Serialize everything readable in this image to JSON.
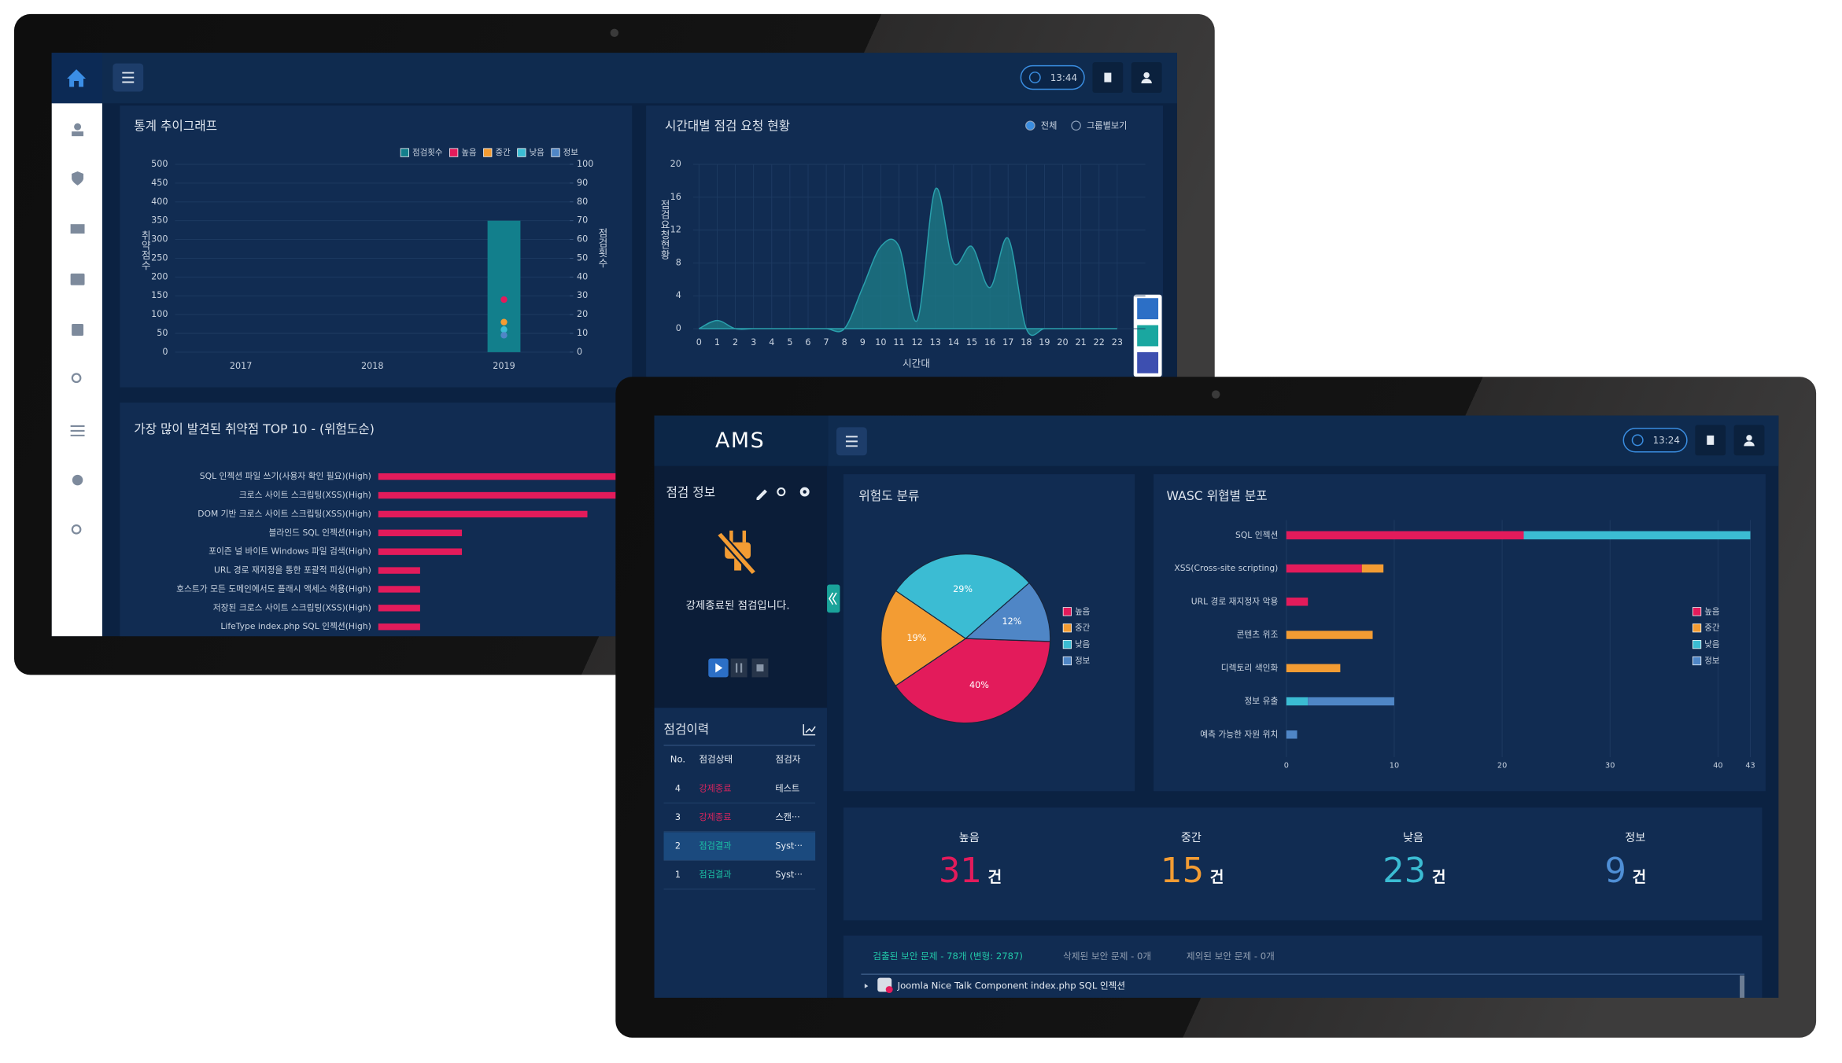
{
  "back_screen": {
    "time": "13:44"
  },
  "front_screen": {
    "logo": "AMS",
    "time": "13:24",
    "scan_info": {
      "title": "점검 정보",
      "message": "강제종료된 점검입니다."
    },
    "history": {
      "title": "점검이력",
      "columns": [
        "No.",
        "점검상태",
        "점검자"
      ],
      "rows": [
        [
          4,
          "강제종료",
          "테스트"
        ],
        [
          3,
          "강제종료",
          "스캔···"
        ],
        [
          2,
          "점검결과",
          "Syst···"
        ],
        [
          1,
          "점검결과",
          "Syst···"
        ]
      ]
    },
    "stats": [
      {
        "label": "높음",
        "value": 31,
        "unit": "건",
        "color": "#e31b5b"
      },
      {
        "label": "중간",
        "value": 15,
        "unit": "건",
        "color": "#f39c33"
      },
      {
        "label": "낮음",
        "value": 23,
        "unit": "건",
        "color": "#3bbcd3"
      },
      {
        "label": "정보",
        "value": 9,
        "unit": "건",
        "color": "#4f8fd6"
      }
    ],
    "issues": {
      "tabs": [
        "검출된 보안 문제 - 78개 (변형: 2787)",
        "삭제된 보안 문제 - 0개",
        "제외된 보안 문제 - 0개"
      ],
      "items": [
        "Joomla Nice Talk Component index.php SQL 인젝션"
      ]
    }
  },
  "chart_data": [
    {
      "type": "bar_line",
      "title": "통계 추이그래프",
      "categories": [
        "2017",
        "2018",
        "2019"
      ],
      "ylabel": "취약점수",
      "y2label": "점검횟수",
      "ylim": [
        0,
        500
      ],
      "yticks": [
        0,
        50,
        100,
        150,
        200,
        250,
        300,
        350,
        400,
        450,
        500
      ],
      "y2lim": [
        0,
        100
      ],
      "y2ticks": [
        0,
        10,
        20,
        30,
        40,
        50,
        60,
        70,
        80,
        90,
        100
      ],
      "grid": true,
      "series": [
        {
          "name": "점검횟수",
          "type": "bar",
          "axis": "y2",
          "color": "#127f8c",
          "values": [
            null,
            null,
            70
          ]
        },
        {
          "name": "높음",
          "color": "#e31b5b",
          "values": [
            null,
            null,
            140
          ]
        },
        {
          "name": "중간",
          "color": "#f39c33",
          "values": [
            null,
            null,
            80
          ]
        },
        {
          "name": "낮음",
          "color": "#3bbcd3",
          "values": [
            null,
            null,
            60
          ]
        },
        {
          "name": "정보",
          "color": "#4f86c6",
          "values": [
            null,
            null,
            45
          ]
        }
      ]
    },
    {
      "type": "area",
      "title": "시간대별 점검 요청 현황",
      "options": [
        "전체",
        "그룹별보기"
      ],
      "ylabel": "점검요청현황",
      "xlabel": "시간대",
      "categories": [
        "0",
        "1",
        "2",
        "3",
        "4",
        "5",
        "6",
        "7",
        "8",
        "9",
        "10",
        "11",
        "12",
        "13",
        "14",
        "15",
        "16",
        "17",
        "18",
        "19",
        "20",
        "21",
        "22",
        "23"
      ],
      "values": [
        0,
        1,
        0,
        0,
        0,
        0,
        0,
        0,
        0,
        5,
        10,
        10,
        1,
        17,
        8,
        10,
        5,
        11,
        0,
        0,
        0,
        0,
        0,
        0
      ],
      "color": "#1d7f8a",
      "ylim": [
        0,
        20
      ],
      "yticks": [
        0,
        4,
        8,
        12,
        16,
        20
      ],
      "grid": true
    },
    {
      "type": "hbar",
      "title": "가장 많이 발견된 취약점 TOP 10 - (위험도순)",
      "color": "#e31b5b",
      "categories": [
        "SQL 인젝션 파일 쓰기(사용자 확인 필요)(High)",
        "크로스 사이트 스크립팅(XSS)(High)",
        "DOM 기반 크로스 사이트 스크립팅(XSS)(High)",
        "블라인드 SQL 인젝션(High)",
        "포이즌 널 바이트 Windows 파일 검색(High)",
        "URL 경로 재지정을 통한 포괄적 피싱(High)",
        "호스트가 모든 도메인에서도 플래시 액세스 허용(High)",
        "저장된 크로스 사이트 스크립팅(XSS)(High)",
        "LifeType index.php SQL 인젝션(High)"
      ],
      "values": [
        12,
        12,
        10,
        4,
        4,
        2,
        2,
        2,
        2
      ]
    },
    {
      "type": "pie",
      "title": "위험도 분류",
      "categories": [
        "높음",
        "중간",
        "낮음",
        "정보"
      ],
      "values": [
        40,
        19,
        29,
        12
      ],
      "value_labels": [
        "40%",
        "19%",
        "29%",
        "12%"
      ],
      "colors": [
        "#e31b5b",
        "#f39c33",
        "#3bbcd3",
        "#4f86c6"
      ]
    },
    {
      "type": "stacked_hbar",
      "title": "WASC 위협별 분포",
      "categories": [
        "SQL 인젝션",
        "XSS(Cross-site scripting)",
        "URL 경로 재지정자 악용",
        "콘텐츠 위조",
        "디렉토리 색인화",
        "정보 유출",
        "예측 가능한 자원 위치"
      ],
      "xlim": [
        0,
        43
      ],
      "xticks": [
        0,
        10,
        20,
        30,
        40,
        43
      ],
      "grid": true,
      "series": [
        {
          "name": "높음",
          "color": "#e31b5b",
          "values": [
            22,
            7,
            2,
            0,
            0,
            0,
            0
          ]
        },
        {
          "name": "중간",
          "color": "#f39c33",
          "values": [
            0,
            2,
            0,
            8,
            5,
            0,
            0
          ]
        },
        {
          "name": "낮음",
          "color": "#3bbcd3",
          "values": [
            21,
            0,
            0,
            0,
            0,
            2,
            0
          ]
        },
        {
          "name": "정보",
          "color": "#4f86c6",
          "values": [
            0,
            0,
            0,
            0,
            0,
            8,
            1
          ]
        }
      ]
    }
  ]
}
